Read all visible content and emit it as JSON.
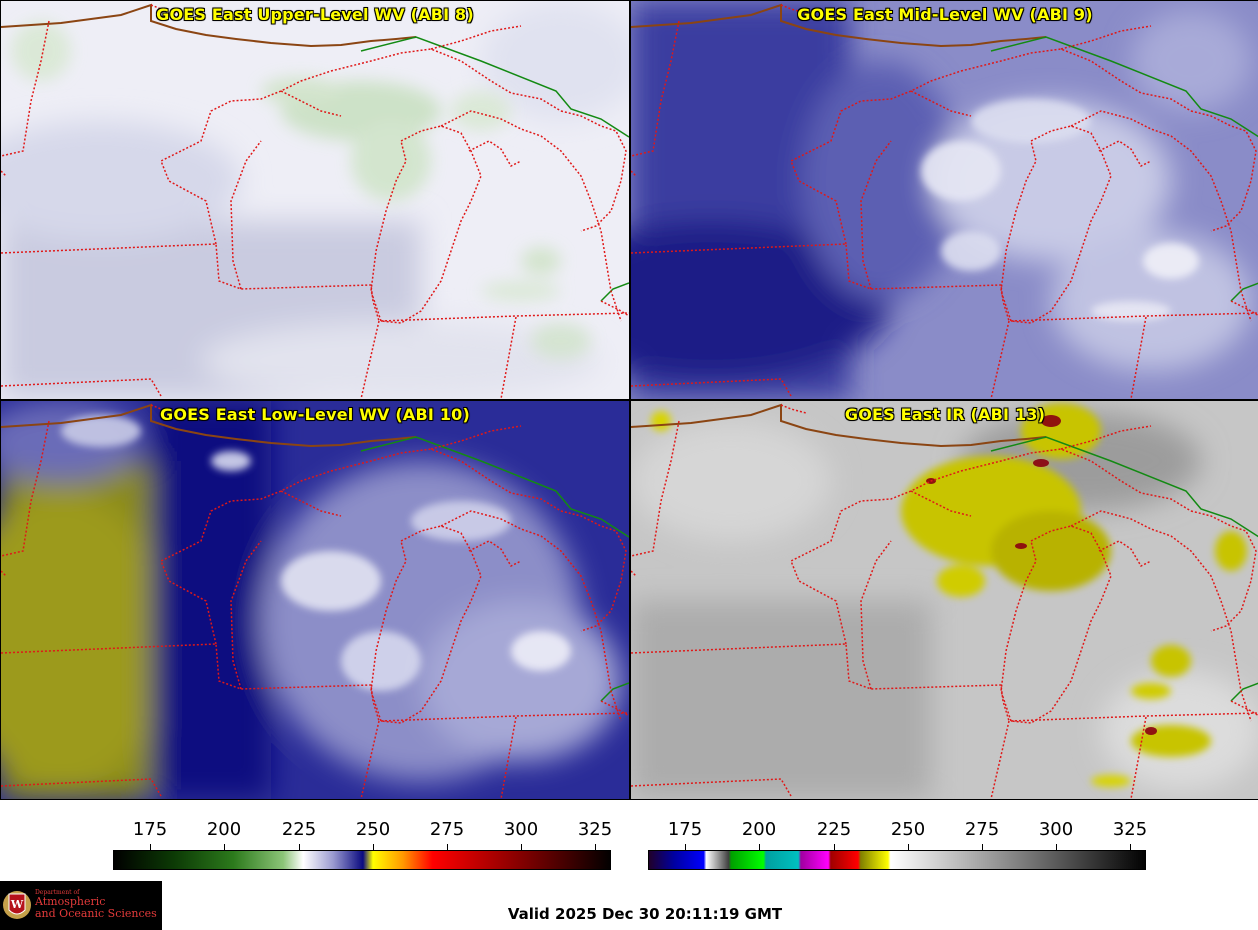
{
  "panels": [
    {
      "id": "upper",
      "title": "GOES East Upper-Level WV (ABI 8)"
    },
    {
      "id": "mid",
      "title": "GOES East Mid-Level WV (ABI 9)"
    },
    {
      "id": "low",
      "title": "GOES East Low-Level WV (ABI 10)"
    },
    {
      "id": "ir",
      "title": "GOES East IR (ABI 13)"
    }
  ],
  "colorbars": {
    "wv": {
      "ticks": [
        "175",
        "200",
        "225",
        "250",
        "275",
        "300",
        "325"
      ]
    },
    "ir": {
      "ticks": [
        "175",
        "200",
        "225",
        "250",
        "275",
        "300",
        "325"
      ]
    }
  },
  "logo": {
    "line1": "Department of",
    "line2": "Atmospheric",
    "line3": "and Oceanic Sciences"
  },
  "valid_time": "Valid 2025 Dec 30 20:11:19 GMT",
  "colors": {
    "state_border": "#e01818",
    "country_border": "#138a13",
    "coast_border": "#8b4513",
    "title": "#ffff00"
  }
}
